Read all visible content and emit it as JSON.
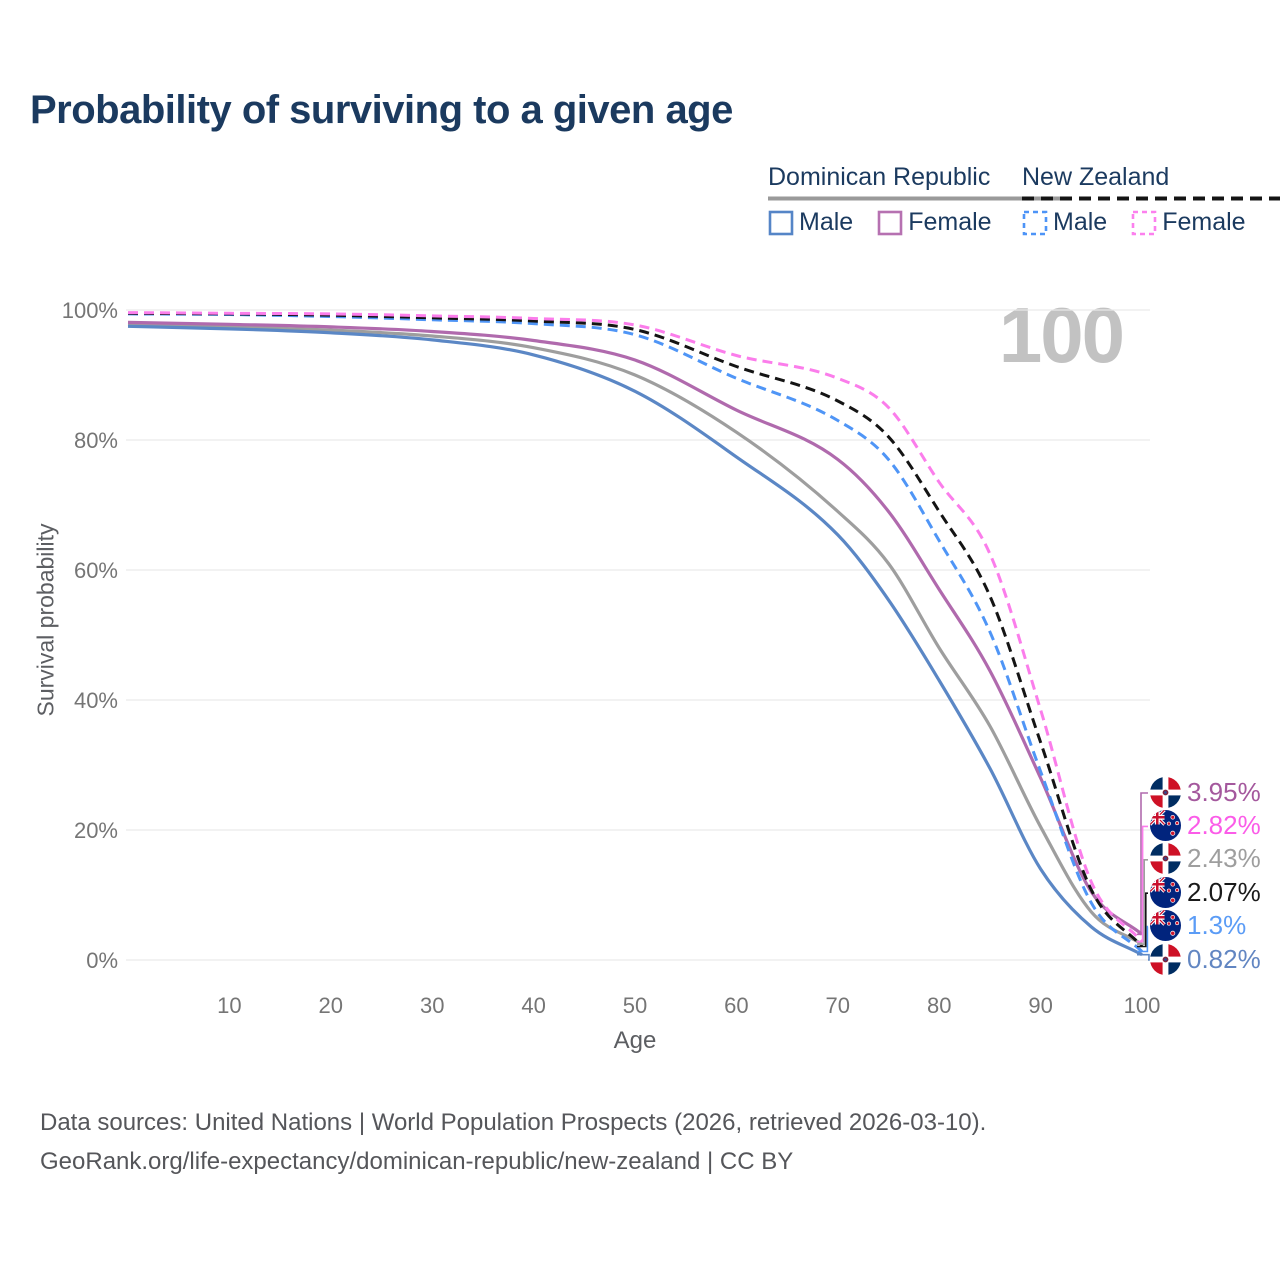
{
  "title": "Probability of surviving to a given age",
  "watermark_age": "100",
  "legend": {
    "groups": [
      {
        "country": "Dominican Republic",
        "line_style": "solid",
        "underline_color": "#9a9a9a",
        "items": [
          {
            "label": "Male",
            "color": "#5585c7"
          },
          {
            "label": "Female",
            "color": "#b671b1"
          }
        ]
      },
      {
        "country": "New Zealand",
        "line_style": "dashed",
        "underline_color": "#141414",
        "items": [
          {
            "label": "Male",
            "color": "#4d94f7"
          },
          {
            "label": "Female",
            "color": "#fc80ee"
          }
        ]
      }
    ]
  },
  "chart_data": {
    "type": "line",
    "title": "Probability of surviving to a given age",
    "xlabel": "Age",
    "ylabel": "Survival probability",
    "xlim": [
      0,
      100
    ],
    "ylim": [
      0,
      100
    ],
    "grid": true,
    "x_tick_labels": [
      "10",
      "20",
      "30",
      "40",
      "50",
      "60",
      "70",
      "80",
      "90",
      "100"
    ],
    "x_tick_values": [
      10,
      20,
      30,
      40,
      50,
      60,
      70,
      80,
      90,
      100
    ],
    "y_tick_labels": [
      "100%",
      "80%",
      "60%",
      "40%",
      "20%",
      "0%"
    ],
    "y_tick_values": [
      100,
      80,
      60,
      40,
      20,
      0
    ],
    "x": [
      0,
      10,
      20,
      30,
      40,
      50,
      60,
      70,
      75,
      80,
      85,
      90,
      95,
      100
    ],
    "series": [
      {
        "name": "Dominican Republic Total",
        "color": "#9e9e9e",
        "dash": "solid",
        "values": [
          97.8,
          97.4,
          96.9,
          96.0,
          94.2,
          90.0,
          81.2,
          69.0,
          61.0,
          48.0,
          36.0,
          20.5,
          7.4,
          2.43
        ]
      },
      {
        "name": "Dominican Republic Male",
        "color": "#5b87c5",
        "dash": "solid",
        "values": [
          97.5,
          97.1,
          96.5,
          95.4,
          93.1,
          87.5,
          77.4,
          65.4,
          55.4,
          43.0,
          29.5,
          14.0,
          5.1,
          0.82
        ]
      },
      {
        "name": "Dominican Republic Female",
        "color": "#b06aad",
        "dash": "solid",
        "values": [
          98.1,
          97.8,
          97.4,
          96.7,
          95.3,
          92.3,
          84.6,
          77.0,
          69.0,
          57.0,
          44.5,
          28.0,
          10.5,
          3.95
        ]
      },
      {
        "name": "New Zealand Male",
        "color": "#4f95f6",
        "dash": "dashed",
        "values": [
          99.4,
          99.3,
          99.0,
          98.5,
          97.9,
          96.2,
          89.5,
          83.0,
          77.0,
          64.5,
          50.5,
          29.0,
          8.8,
          1.3
        ]
      },
      {
        "name": "New Zealand Total",
        "color": "#141414",
        "dash": "dashed",
        "values": [
          99.5,
          99.4,
          99.2,
          98.8,
          98.3,
          97.0,
          91.3,
          86.0,
          80.5,
          69.0,
          56.0,
          33.5,
          10.8,
          2.07
        ]
      },
      {
        "name": "New Zealand Female",
        "color": "#fb7deb",
        "dash": "dashed",
        "values": [
          99.6,
          99.5,
          99.4,
          99.1,
          98.7,
          97.7,
          93.0,
          89.5,
          85.0,
          73.5,
          62.5,
          38.5,
          12.0,
          2.82
        ]
      }
    ],
    "end_labels": [
      {
        "text": "3.95%",
        "color": "#a4589d",
        "series_index": 2,
        "flag": "dominican-republic-flag-icon"
      },
      {
        "text": "2.82%",
        "color": "#fb5ce8",
        "series_index": 5,
        "flag": "new-zealand-flag-icon"
      },
      {
        "text": "2.43%",
        "color": "#9e9e9e",
        "series_index": 0,
        "flag": "dominican-republic-flag-icon"
      },
      {
        "text": "2.07%",
        "color": "#1a1a1a",
        "series_index": 4,
        "flag": "new-zealand-flag-icon"
      },
      {
        "text": "1.3%",
        "color": "#5b9cf6",
        "series_index": 3,
        "flag": "new-zealand-flag-icon"
      },
      {
        "text": "0.82%",
        "color": "#6286c2",
        "series_index": 1,
        "flag": "dominican-republic-flag-icon"
      }
    ]
  },
  "footer": {
    "line1": "Data sources: United Nations | World Population Prospects (2026, retrieved 2026-03-10).",
    "line2": "GeoRank.org/life-expectancy/dominican-republic/new-zealand | CC BY"
  }
}
